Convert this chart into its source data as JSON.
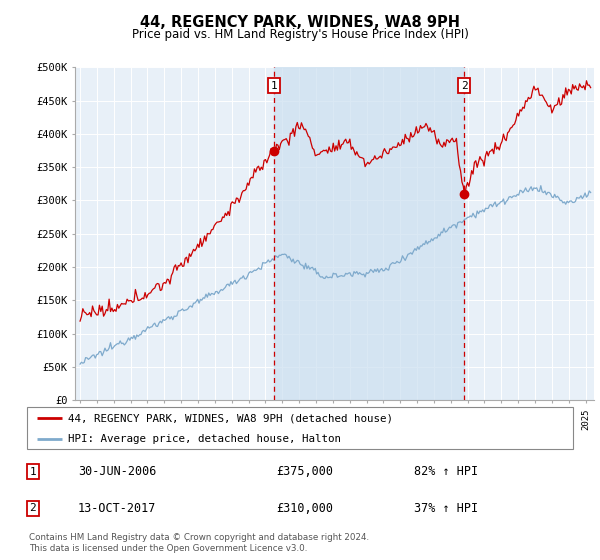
{
  "title": "44, REGENCY PARK, WIDNES, WA8 9PH",
  "subtitle": "Price paid vs. HM Land Registry's House Price Index (HPI)",
  "ylim": [
    0,
    500000
  ],
  "xlim_start": 1994.7,
  "xlim_end": 2025.5,
  "sale1_date": 2006.5,
  "sale1_price": 375000,
  "sale2_date": 2017.79,
  "sale2_price": 310000,
  "legend_line1": "44, REGENCY PARK, WIDNES, WA8 9PH (detached house)",
  "legend_line2": "HPI: Average price, detached house, Halton",
  "line_color_red": "#cc0000",
  "line_color_blue": "#7faacc",
  "shade_color": "#cce0f0",
  "background_color": "#e8f0f8",
  "footnote": "Contains HM Land Registry data © Crown copyright and database right 2024.\nThis data is licensed under the Open Government Licence v3.0."
}
